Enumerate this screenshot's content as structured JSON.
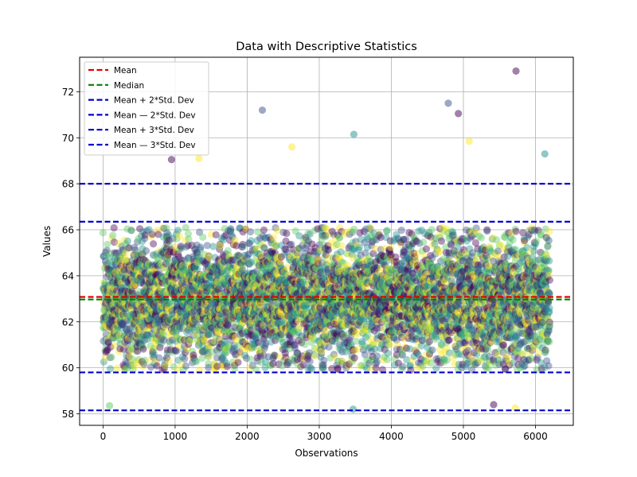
{
  "chart_data": {
    "type": "scatter",
    "title": "Data with Descriptive Statistics",
    "xlabel": "Observations",
    "ylabel": "Values",
    "xlim": [
      -325,
      6525
    ],
    "ylim": [
      57.5,
      73.5
    ],
    "xticks": [
      0,
      1000,
      2000,
      3000,
      4000,
      5000,
      6000
    ],
    "yticks": [
      58,
      60,
      62,
      64,
      66,
      68,
      70,
      72
    ],
    "grid": true,
    "legend_position": "top-left",
    "n_points": 6200,
    "point_mean": 63.0,
    "point_std": 1.4,
    "colormap": [
      "#440154",
      "#3b528b",
      "#21918c",
      "#5ec962",
      "#fde725"
    ],
    "outliers": [
      {
        "x": 2210,
        "y": 71.2
      },
      {
        "x": 3480,
        "y": 70.15
      },
      {
        "x": 4790,
        "y": 71.5
      },
      {
        "x": 4930,
        "y": 71.05
      },
      {
        "x": 5730,
        "y": 72.9
      },
      {
        "x": 6130,
        "y": 69.3
      },
      {
        "x": 2620,
        "y": 69.6
      },
      {
        "x": 5080,
        "y": 69.85
      },
      {
        "x": 950,
        "y": 69.05
      },
      {
        "x": 1330,
        "y": 69.1
      },
      {
        "x": 3470,
        "y": 58.2
      },
      {
        "x": 5720,
        "y": 58.25
      },
      {
        "x": 90,
        "y": 58.35
      },
      {
        "x": 5420,
        "y": 58.4
      }
    ],
    "lines": [
      {
        "name": "Mean",
        "y": 63.08,
        "color": "#e00000"
      },
      {
        "name": "Median",
        "y": 62.97,
        "color": "#008000"
      },
      {
        "name": "Mean + 2*Std. Dev",
        "y": 66.35,
        "color": "#0000cc"
      },
      {
        "name": "Mean — 2*Std. Dev",
        "y": 59.8,
        "color": "#0000cc"
      },
      {
        "name": "Mean + 3*Std. Dev",
        "y": 68.0,
        "color": "#0000cc"
      },
      {
        "name": "Mean — 3*Std. Dev",
        "y": 58.15,
        "color": "#0000cc"
      }
    ]
  }
}
